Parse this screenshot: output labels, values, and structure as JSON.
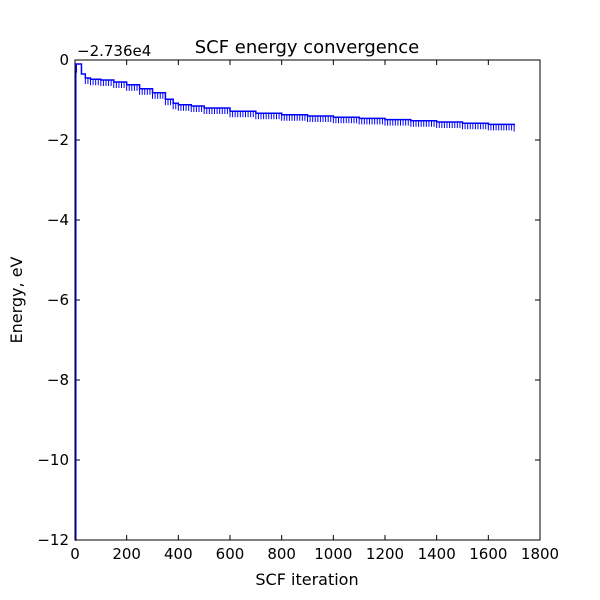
{
  "chart_data": {
    "type": "line",
    "title": "SCF energy convergence",
    "xlabel": "SCF iteration",
    "ylabel": "Energy, eV",
    "offset_text": "−2.736e4",
    "xlim": [
      0,
      1800
    ],
    "ylim": [
      -12,
      0
    ],
    "xticks": [
      0,
      200,
      400,
      600,
      800,
      1000,
      1200,
      1400,
      1600,
      1800
    ],
    "yticks": [
      0,
      -2,
      -4,
      -6,
      -8,
      -10,
      -12
    ],
    "grid": false,
    "series": [
      {
        "color": "#0000ff",
        "style": "step",
        "x": [
          0,
          3,
          5,
          20,
          25,
          40,
          60,
          100,
          150,
          200,
          250,
          300,
          350,
          380,
          400,
          450,
          500,
          600,
          700,
          800,
          900,
          1000,
          1100,
          1200,
          1300,
          1400,
          1500,
          1600,
          1700
        ],
        "y": [
          -12.0,
          -0.3,
          -0.1,
          -0.1,
          -0.35,
          -0.45,
          -0.48,
          -0.5,
          -0.55,
          -0.62,
          -0.72,
          -0.82,
          -0.98,
          -1.08,
          -1.12,
          -1.15,
          -1.2,
          -1.28,
          -1.33,
          -1.37,
          -1.4,
          -1.43,
          -1.46,
          -1.49,
          -1.52,
          -1.55,
          -1.58,
          -1.61,
          -1.64
        ]
      }
    ],
    "tick_format": {
      "0": "0",
      "-2": "−2",
      "-4": "−4",
      "-6": "−6",
      "-8": "−8",
      "-10": "−10",
      "-12": "−12"
    }
  }
}
